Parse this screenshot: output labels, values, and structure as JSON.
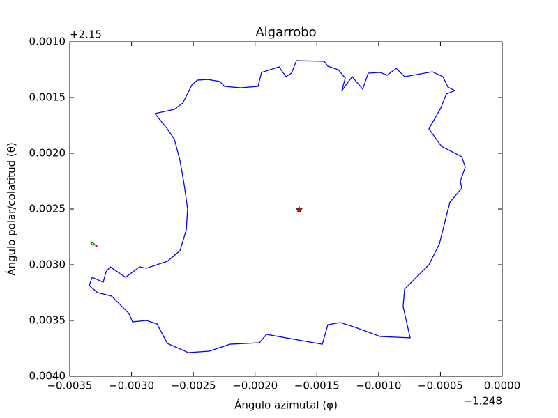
{
  "chart_data": {
    "type": "line",
    "title": "Algarrobo",
    "x_label": "Ángulo azimutal (φ)",
    "y_label": "Ángulo polar/colatitud (θ)",
    "x_offset_text": "−1.248",
    "y_offset_text": "+2.15",
    "xlim": [
      -0.0035,
      0.0
    ],
    "ylim": [
      0.004,
      0.001
    ],
    "xticks": [
      {
        "value": -0.0035,
        "label": "−0.0035"
      },
      {
        "value": -0.003,
        "label": "−0.0030"
      },
      {
        "value": -0.0025,
        "label": "−0.0025"
      },
      {
        "value": -0.002,
        "label": "−0.0020"
      },
      {
        "value": -0.0015,
        "label": "−0.0015"
      },
      {
        "value": -0.001,
        "label": "−0.0010"
      },
      {
        "value": -0.0005,
        "label": "−0.0005"
      },
      {
        "value": 0.0,
        "label": "0.0000"
      }
    ],
    "yticks": [
      {
        "value": 0.001,
        "label": "0.0010"
      },
      {
        "value": 0.0015,
        "label": "0.0015"
      },
      {
        "value": 0.002,
        "label": "0.0020"
      },
      {
        "value": 0.0025,
        "label": "0.0025"
      },
      {
        "value": 0.003,
        "label": "0.0030"
      },
      {
        "value": 0.0035,
        "label": "0.0035"
      },
      {
        "value": 0.004,
        "label": "0.0040"
      }
    ],
    "series": [
      {
        "color": "#0000ff",
        "marker": "none",
        "x": [
          -0.002811,
          -0.002653,
          -0.002585,
          -0.002512,
          -0.002467,
          -0.002382,
          -0.002286,
          -0.002247,
          -0.002117,
          -0.001976,
          -0.001948,
          -0.001806,
          -0.00175,
          -0.001705,
          -0.001665,
          -0.00144,
          -0.001411,
          -0.001327,
          -0.00127,
          -0.001298,
          -0.001214,
          -0.001129,
          -0.001084,
          -0.000988,
          -0.000931,
          -0.000858,
          -0.00079,
          -0.000565,
          -0.00048,
          -0.00044,
          -0.000384,
          -0.000452,
          -0.000497,
          -0.000593,
          -0.000491,
          -0.000327,
          -0.000299,
          -0.000339,
          -0.000327,
          -0.000423,
          -0.000452,
          -0.000508,
          -0.000593,
          -0.00079,
          -0.000802,
          -0.000745,
          -0.000988,
          -0.001185,
          -0.00131,
          -0.001411,
          -0.001456,
          -0.001908,
          -0.001965,
          -0.002202,
          -0.002371,
          -0.00254,
          -0.00271,
          -0.002794,
          -0.002879,
          -0.002992,
          -0.00302,
          -0.003161,
          -0.003274,
          -0.003342,
          -0.003319,
          -0.003229,
          -0.003206,
          -0.003173,
          -0.003048,
          -0.002935,
          -0.002879,
          -0.00271,
          -0.002608,
          -0.002557,
          -0.002546,
          -0.002574,
          -0.002608,
          -0.002653,
          -0.00271,
          -0.002811
        ],
        "y": [
          0.001644,
          0.001606,
          0.00155,
          0.001388,
          0.001344,
          0.001338,
          0.001356,
          0.0014,
          0.001413,
          0.0014,
          0.001275,
          0.001225,
          0.001313,
          0.001281,
          0.001169,
          0.001175,
          0.001219,
          0.00125,
          0.001325,
          0.001438,
          0.001313,
          0.001425,
          0.001281,
          0.001275,
          0.0013,
          0.001238,
          0.001313,
          0.001269,
          0.001313,
          0.001406,
          0.001438,
          0.001469,
          0.001594,
          0.001781,
          0.001938,
          0.002031,
          0.002125,
          0.00225,
          0.002313,
          0.002438,
          0.002563,
          0.002813,
          0.003,
          0.003219,
          0.003375,
          0.003656,
          0.003644,
          0.003563,
          0.003519,
          0.003538,
          0.003713,
          0.003625,
          0.0037,
          0.003713,
          0.003775,
          0.003788,
          0.003706,
          0.003531,
          0.0035,
          0.003513,
          0.003438,
          0.003281,
          0.00325,
          0.003188,
          0.003113,
          0.003156,
          0.003063,
          0.003019,
          0.003113,
          0.003019,
          0.003031,
          0.002969,
          0.002875,
          0.002688,
          0.0025,
          0.002281,
          0.002063,
          0.001875,
          0.001781,
          0.001644
        ]
      },
      {
        "color": "#008000",
        "marker": "none",
        "x": [
          -0.003331,
          -0.003314,
          -0.003297,
          -0.003314,
          -0.003331
        ],
        "y": [
          0.002806,
          0.0028,
          0.002819,
          0.002825,
          0.002806
        ]
      },
      {
        "color": "#ff0000",
        "marker": "dot",
        "x": [
          -0.003285
        ],
        "y": [
          0.002831
        ]
      },
      {
        "color": "#ff0000",
        "marker": "star",
        "x": [
          -0.001643
        ],
        "y": [
          0.002506
        ]
      }
    ]
  }
}
